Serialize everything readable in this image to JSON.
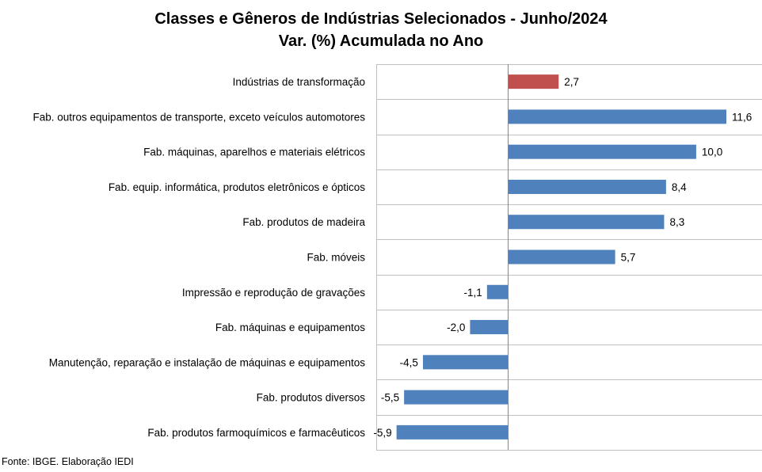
{
  "title_line1": "Classes e Gêneros de Indústrias Selecionados - Junho/2024",
  "title_line2": "Var. (%) Acumulada no Ano",
  "source": "Fonte: IBGE. Elaboração IEDI",
  "colors": {
    "highlight": "#c0504d",
    "bar": "#4f81bd",
    "grid": "#bfbfbf",
    "axis": "#868686"
  },
  "chart_data": {
    "type": "bar",
    "orientation": "horizontal",
    "title": "Classes e Gêneros de Indústrias Selecionados - Junho/2024 | Var. (%) Acumulada no Ano",
    "categories": [
      "Indústrias de transformação",
      "Fab. outros equipamentos de transporte, exceto veículos automotores",
      "Fab. máquinas, aparelhos e materiais elétricos",
      "Fab. equip. informática, produtos eletrônicos e ópticos",
      "Fab. produtos de madeira",
      "Fab. móveis",
      "Impressão e reprodução de gravações",
      "Fab. máquinas e equipamentos",
      "Manutenção, reparação e instalação de máquinas e equipamentos",
      "Fab. produtos diversos",
      "Fab. produtos farmoquímicos e farmacêuticos"
    ],
    "values": [
      2.7,
      11.6,
      10.0,
      8.4,
      8.3,
      5.7,
      -1.1,
      -2.0,
      -4.5,
      -5.5,
      -5.9
    ],
    "value_labels": [
      "2,7",
      "11,6",
      "10,0",
      "8,4",
      "8,3",
      "5,7",
      "-1,1",
      "-2,0",
      "-4,5",
      "-5,5",
      "-5,9"
    ],
    "highlight_index": 0,
    "xlim": [
      -7,
      13.5
    ],
    "grid": "horizontal separators",
    "legend": "none"
  }
}
